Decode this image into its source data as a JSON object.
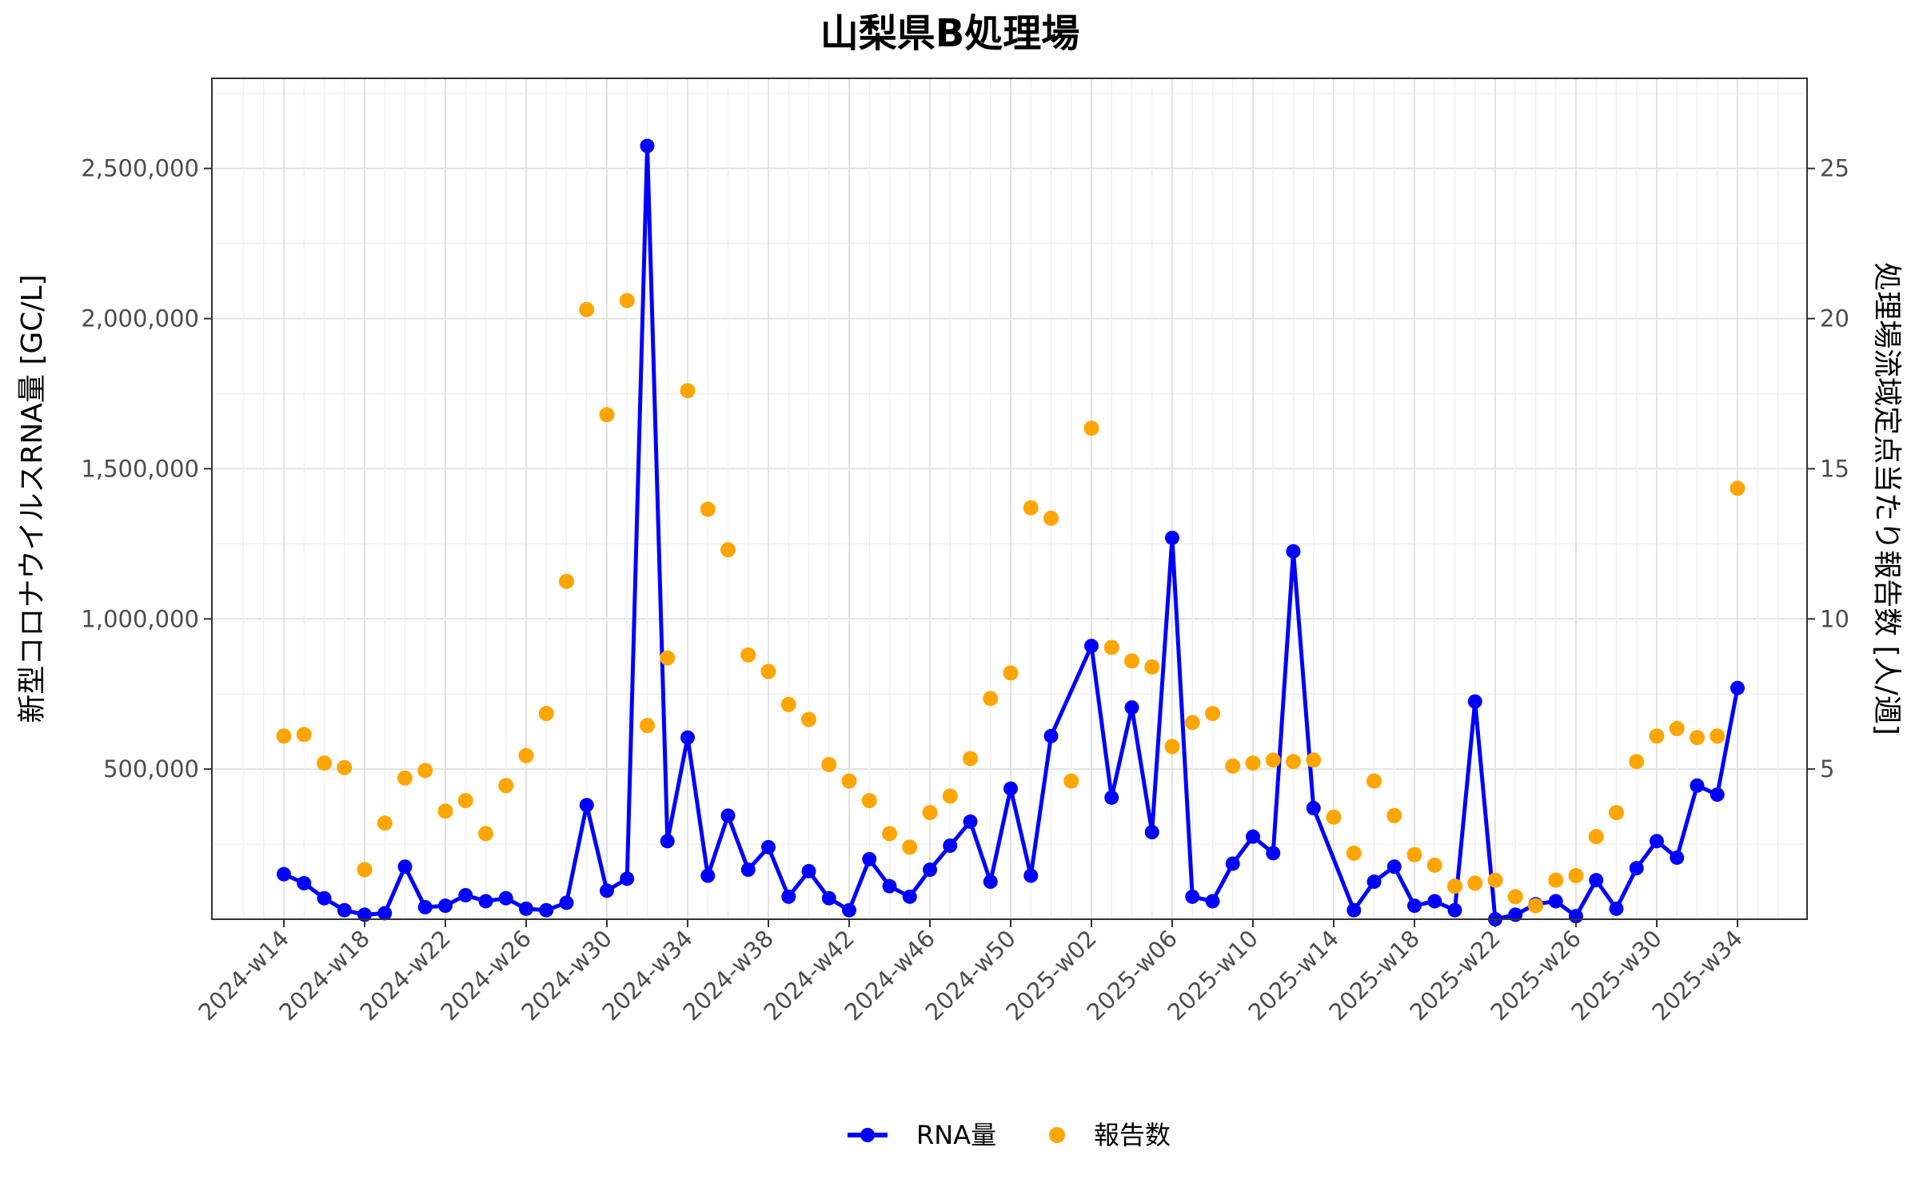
{
  "chart_data": {
    "type": "line",
    "title": "山梨県B処理場",
    "ylabel": "新型コロナウイルスRNA量 [GC/L]",
    "y2label": "処理場流域定点当たり報告数 [人/週]",
    "ylim": [
      0,
      2800000
    ],
    "y2lim": [
      0,
      28
    ],
    "yticks": [
      500000,
      1000000,
      1500000,
      2000000,
      2500000
    ],
    "ytick_labels": [
      "500,000",
      "1,000,000",
      "1,500,000",
      "2,000,000",
      "2,500,000"
    ],
    "y2ticks": [
      5,
      10,
      15,
      20,
      25
    ],
    "y2tick_labels": [
      "5",
      "10",
      "15",
      "20",
      "25"
    ],
    "xtick_labels": [
      "2024-w14",
      "2024-w18",
      "2024-w22",
      "2024-w26",
      "2024-w30",
      "2024-w34",
      "2024-w38",
      "2024-w42",
      "2024-w46",
      "2024-w50",
      "2025-w02",
      "2025-w06",
      "2025-w10",
      "2025-w14",
      "2025-w18",
      "2025-w22",
      "2025-w26",
      "2025-w30",
      "2025-w34"
    ],
    "grid": true,
    "legend_position": "bottom",
    "colors": {
      "rna": "#0000ff",
      "reports": "#ffa500"
    },
    "series": [
      {
        "name": "RNA量",
        "axis": "left",
        "points": [
          [
            "2024-w14",
            150000
          ],
          [
            "2024-w15",
            120000
          ],
          [
            "2024-w16",
            70000
          ],
          [
            "2024-w17",
            30000
          ],
          [
            "2024-w18",
            15000
          ],
          [
            "2024-w19",
            20000
          ],
          [
            "2024-w20",
            175000
          ],
          [
            "2024-w21",
            40000
          ],
          [
            "2024-w22",
            45000
          ],
          [
            "2024-w23",
            80000
          ],
          [
            "2024-w24",
            60000
          ],
          [
            "2024-w25",
            70000
          ],
          [
            "2024-w26",
            35000
          ],
          [
            "2024-w27",
            30000
          ],
          [
            "2024-w28",
            55000
          ],
          [
            "2024-w29",
            380000
          ],
          [
            "2024-w30",
            95000
          ],
          [
            "2024-w31",
            135000
          ],
          [
            "2024-w32",
            2575000
          ],
          [
            "2024-w33",
            260000
          ],
          [
            "2024-w34",
            605000
          ],
          [
            "2024-w35",
            145000
          ],
          [
            "2024-w36",
            345000
          ],
          [
            "2024-w37",
            165000
          ],
          [
            "2024-w38",
            240000
          ],
          [
            "2024-w39",
            75000
          ],
          [
            "2024-w40",
            160000
          ],
          [
            "2024-w41",
            70000
          ],
          [
            "2024-w42",
            30000
          ],
          [
            "2024-w43",
            200000
          ],
          [
            "2024-w44",
            110000
          ],
          [
            "2024-w45",
            75000
          ],
          [
            "2024-w46",
            165000
          ],
          [
            "2024-w47",
            245000
          ],
          [
            "2024-w48",
            325000
          ],
          [
            "2024-w49",
            125000
          ],
          [
            "2024-w50",
            435000
          ],
          [
            "2024-w51",
            145000
          ],
          [
            "2024-w52",
            610000
          ],
          [
            "2025-w02",
            910000
          ],
          [
            "2025-w03",
            405000
          ],
          [
            "2025-w04",
            705000
          ],
          [
            "2025-w05",
            290000
          ],
          [
            "2025-w06",
            1270000
          ],
          [
            "2025-w07",
            75000
          ],
          [
            "2025-w08",
            60000
          ],
          [
            "2025-w09",
            185000
          ],
          [
            "2025-w10",
            275000
          ],
          [
            "2025-w11",
            220000
          ],
          [
            "2025-w12",
            1225000
          ],
          [
            "2025-w13",
            370000
          ],
          [
            "2025-w15",
            30000
          ],
          [
            "2025-w16",
            125000
          ],
          [
            "2025-w17",
            175000
          ],
          [
            "2025-w18",
            45000
          ],
          [
            "2025-w19",
            60000
          ],
          [
            "2025-w20",
            30000
          ],
          [
            "2025-w21",
            725000
          ],
          [
            "2025-w22",
            0
          ],
          [
            "2025-w23",
            15000
          ],
          [
            "2025-w24",
            50000
          ],
          [
            "2025-w25",
            60000
          ],
          [
            "2025-w26",
            10000
          ],
          [
            "2025-w27",
            130000
          ],
          [
            "2025-w28",
            35000
          ],
          [
            "2025-w29",
            170000
          ],
          [
            "2025-w30",
            260000
          ],
          [
            "2025-w31",
            205000
          ],
          [
            "2025-w32",
            445000
          ],
          [
            "2025-w33",
            415000
          ],
          [
            "2025-w34",
            770000
          ]
        ]
      },
      {
        "name": "報告数",
        "axis": "right",
        "points": [
          [
            "2024-w14",
            6.1
          ],
          [
            "2024-w15",
            6.15
          ],
          [
            "2024-w16",
            5.2
          ],
          [
            "2024-w17",
            5.05
          ],
          [
            "2024-w18",
            1.65
          ],
          [
            "2024-w19",
            3.2
          ],
          [
            "2024-w20",
            4.7
          ],
          [
            "2024-w21",
            4.95
          ],
          [
            "2024-w22",
            3.6
          ],
          [
            "2024-w23",
            3.95
          ],
          [
            "2024-w24",
            2.85
          ],
          [
            "2024-w25",
            4.45
          ],
          [
            "2024-w26",
            5.45
          ],
          [
            "2024-w27",
            6.85
          ],
          [
            "2024-w28",
            11.25
          ],
          [
            "2024-w29",
            20.3
          ],
          [
            "2024-w30",
            16.8
          ],
          [
            "2024-w31",
            20.6
          ],
          [
            "2024-w32",
            6.45
          ],
          [
            "2024-w33",
            8.7
          ],
          [
            "2024-w34",
            17.6
          ],
          [
            "2024-w35",
            13.65
          ],
          [
            "2024-w36",
            12.3
          ],
          [
            "2024-w37",
            8.8
          ],
          [
            "2024-w38",
            8.25
          ],
          [
            "2024-w39",
            7.15
          ],
          [
            "2024-w40",
            6.65
          ],
          [
            "2024-w41",
            5.15
          ],
          [
            "2024-w42",
            4.6
          ],
          [
            "2024-w43",
            3.95
          ],
          [
            "2024-w44",
            2.85
          ],
          [
            "2024-w45",
            2.4
          ],
          [
            "2024-w46",
            3.55
          ],
          [
            "2024-w47",
            4.1
          ],
          [
            "2024-w48",
            5.35
          ],
          [
            "2024-w49",
            7.35
          ],
          [
            "2024-w50",
            8.2
          ],
          [
            "2024-w51",
            13.7
          ],
          [
            "2024-w52",
            13.35
          ],
          [
            "2025-w01",
            4.6
          ],
          [
            "2025-w02",
            16.35
          ],
          [
            "2025-w03",
            9.05
          ],
          [
            "2025-w04",
            8.6
          ],
          [
            "2025-w05",
            8.4
          ],
          [
            "2025-w06",
            5.75
          ],
          [
            "2025-w07",
            6.55
          ],
          [
            "2025-w08",
            6.85
          ],
          [
            "2025-w09",
            5.1
          ],
          [
            "2025-w10",
            5.2
          ],
          [
            "2025-w11",
            5.3
          ],
          [
            "2025-w12",
            5.25
          ],
          [
            "2025-w13",
            5.3
          ],
          [
            "2025-w14",
            3.4
          ],
          [
            "2025-w15",
            2.2
          ],
          [
            "2025-w16",
            4.6
          ],
          [
            "2025-w17",
            3.45
          ],
          [
            "2025-w18",
            2.15
          ],
          [
            "2025-w19",
            1.8
          ],
          [
            "2025-w20",
            1.1
          ],
          [
            "2025-w21",
            1.2
          ],
          [
            "2025-w22",
            1.3
          ],
          [
            "2025-w23",
            0.75
          ],
          [
            "2025-w24",
            0.45
          ],
          [
            "2025-w25",
            1.3
          ],
          [
            "2025-w26",
            1.45
          ],
          [
            "2025-w27",
            2.75
          ],
          [
            "2025-w28",
            3.55
          ],
          [
            "2025-w29",
            5.25
          ],
          [
            "2025-w30",
            6.1
          ],
          [
            "2025-w31",
            6.35
          ],
          [
            "2025-w32",
            6.05
          ],
          [
            "2025-w33",
            6.1
          ],
          [
            "2025-w34",
            14.35
          ]
        ]
      }
    ]
  }
}
